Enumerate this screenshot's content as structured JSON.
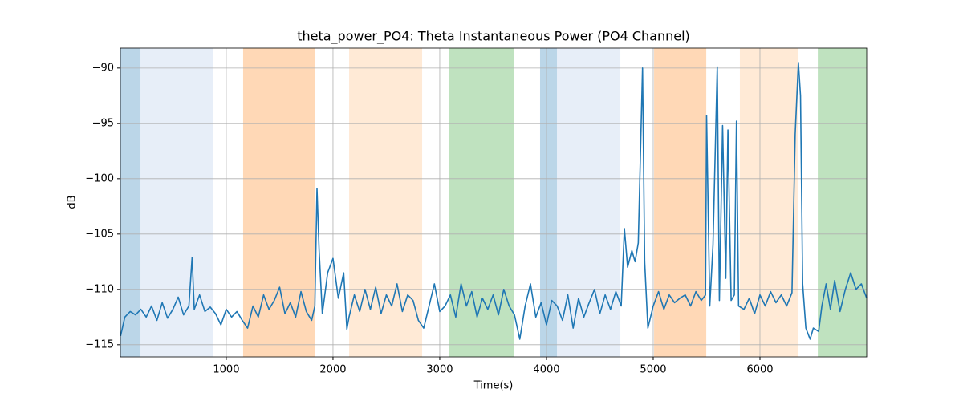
{
  "chart_data": {
    "type": "line",
    "title": "theta_power_PO4: Theta Instantaneous Power (PO4 Channel)",
    "xlabel": "Time(s)",
    "ylabel": "dB",
    "xlim": [
      8,
      7000
    ],
    "ylim": [
      -116.1,
      -88.2
    ],
    "xticks": [
      1000,
      2000,
      3000,
      4000,
      5000,
      6000
    ],
    "yticks": [
      {
        "value": -115,
        "label": "−115"
      },
      {
        "value": -110,
        "label": "−110"
      },
      {
        "value": -105,
        "label": "−105"
      },
      {
        "value": -100,
        "label": "−100"
      },
      {
        "value": -95,
        "label": "−95"
      },
      {
        "value": -90,
        "label": "−90"
      }
    ],
    "grid": true,
    "spans": [
      {
        "start": 8,
        "end": 196,
        "color": "#1f77b4",
        "alpha": 0.3
      },
      {
        "start": 196,
        "end": 873,
        "color": "#aec7e8",
        "alpha": 0.3
      },
      {
        "start": 1158,
        "end": 1828,
        "color": "#ff7f0e",
        "alpha": 0.3
      },
      {
        "start": 2151,
        "end": 2835,
        "color": "#ffbb78",
        "alpha": 0.3
      },
      {
        "start": 3083,
        "end": 3692,
        "color": "#2ca02c",
        "alpha": 0.3
      },
      {
        "start": 3940,
        "end": 4098,
        "color": "#1f77b4",
        "alpha": 0.3
      },
      {
        "start": 4098,
        "end": 4692,
        "color": "#aec7e8",
        "alpha": 0.3
      },
      {
        "start": 5008,
        "end": 5497,
        "color": "#ff7f0e",
        "alpha": 0.3
      },
      {
        "start": 5812,
        "end": 6361,
        "color": "#ffbb78",
        "alpha": 0.3
      },
      {
        "start": 6542,
        "end": 7000,
        "color": "#2ca02c",
        "alpha": 0.3
      }
    ],
    "series": [
      {
        "color": "#1f77b4",
        "x": [
          10,
          50,
          100,
          150,
          200,
          250,
          300,
          350,
          400,
          450,
          500,
          550,
          600,
          650,
          680,
          700,
          750,
          800,
          850,
          900,
          950,
          1000,
          1050,
          1100,
          1150,
          1200,
          1250,
          1300,
          1350,
          1400,
          1450,
          1500,
          1550,
          1600,
          1650,
          1700,
          1750,
          1800,
          1830,
          1850,
          1870,
          1900,
          1950,
          2000,
          2050,
          2100,
          2130,
          2150,
          2200,
          2250,
          2300,
          2350,
          2400,
          2450,
          2500,
          2550,
          2600,
          2650,
          2700,
          2750,
          2800,
          2850,
          2900,
          2950,
          3000,
          3050,
          3100,
          3150,
          3200,
          3250,
          3300,
          3350,
          3400,
          3450,
          3500,
          3550,
          3600,
          3650,
          3700,
          3750,
          3800,
          3850,
          3900,
          3950,
          4000,
          4050,
          4100,
          4150,
          4200,
          4250,
          4300,
          4350,
          4400,
          4450,
          4500,
          4550,
          4600,
          4650,
          4700,
          4730,
          4760,
          4800,
          4830,
          4860,
          4900,
          4920,
          4950,
          5000,
          5050,
          5100,
          5150,
          5200,
          5250,
          5300,
          5350,
          5400,
          5450,
          5490,
          5500,
          5530,
          5560,
          5600,
          5620,
          5650,
          5680,
          5700,
          5730,
          5760,
          5780,
          5800,
          5850,
          5900,
          5950,
          6000,
          6050,
          6100,
          6150,
          6200,
          6250,
          6300,
          6330,
          6360,
          6380,
          6400,
          6430,
          6470,
          6500,
          6550,
          6580,
          6620,
          6660,
          6700,
          6750,
          6800,
          6850,
          6900,
          6950,
          7000
        ],
        "values": [
          -114.2,
          -112.5,
          -112,
          -112.3,
          -111.8,
          -112.5,
          -111.5,
          -112.8,
          -111.2,
          -112.6,
          -111.8,
          -110.7,
          -112.3,
          -111.5,
          -107.1,
          -111.8,
          -110.5,
          -112,
          -111.6,
          -112.2,
          -113.2,
          -111.8,
          -112.5,
          -112,
          -112.8,
          -113.5,
          -111.5,
          -112.5,
          -110.5,
          -111.8,
          -111,
          -109.8,
          -112.2,
          -111.2,
          -112.5,
          -110.2,
          -112,
          -112.8,
          -111.5,
          -100.9,
          -106.5,
          -112.2,
          -108.5,
          -107.2,
          -110.8,
          -108.5,
          -113.6,
          -112.5,
          -110.5,
          -112,
          -110,
          -111.8,
          -109.8,
          -112.2,
          -110.5,
          -111.5,
          -109.5,
          -112,
          -110.5,
          -111,
          -112.8,
          -113.5,
          -111.5,
          -109.5,
          -112,
          -111.5,
          -110.5,
          -112.5,
          -109.5,
          -111.5,
          -110.2,
          -112.5,
          -110.8,
          -111.8,
          -110.5,
          -112.3,
          -110,
          -111.5,
          -112.3,
          -114.5,
          -111.5,
          -109.5,
          -112.5,
          -111.2,
          -113.2,
          -111,
          -111.5,
          -112.8,
          -110.5,
          -113.5,
          -110.8,
          -112.5,
          -111.2,
          -110,
          -112.2,
          -110.5,
          -111.8,
          -110.2,
          -111.5,
          -104.5,
          -108,
          -106.5,
          -107.5,
          -105.8,
          -90,
          -107.5,
          -113.5,
          -111.5,
          -110.2,
          -111.8,
          -110.5,
          -111.2,
          -110.8,
          -110.5,
          -111.5,
          -110.2,
          -111,
          -110.5,
          -94.3,
          -111.5,
          -106,
          -89.9,
          -111,
          -95.2,
          -109,
          -95.6,
          -111,
          -110.5,
          -94.8,
          -111.5,
          -111.8,
          -110.8,
          -112.2,
          -110.5,
          -111.5,
          -110.2,
          -111.2,
          -110.5,
          -111.5,
          -110.3,
          -96,
          -89.5,
          -92.5,
          -109.5,
          -113.5,
          -114.5,
          -113.5,
          -113.8,
          -111.5,
          -109.5,
          -111.8,
          -109.2,
          -112,
          -110,
          -108.5,
          -110,
          -109.5,
          -110.8
        ]
      }
    ]
  }
}
